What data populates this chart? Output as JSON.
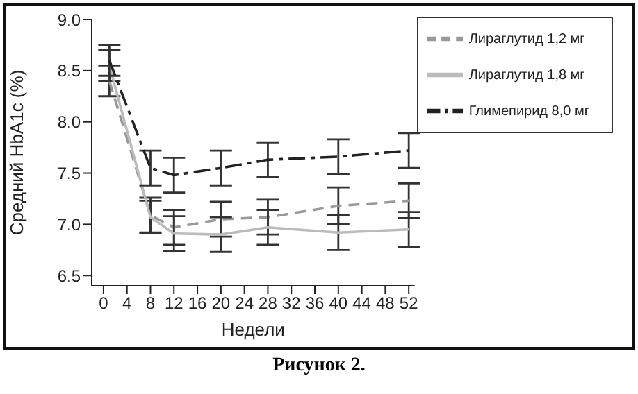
{
  "chart_data": {
    "type": "line",
    "xlabel": "Недели",
    "ylabel": "Средний  HbA1c (%)",
    "annotations": [
      "Рисунок 2."
    ],
    "x": [
      1,
      8,
      12,
      20,
      28,
      40,
      52
    ],
    "xlim": [
      -2,
      53
    ],
    "xticks": [
      0,
      4,
      8,
      12,
      16,
      20,
      24,
      28,
      32,
      36,
      40,
      44,
      48,
      52
    ],
    "ylim": [
      6.4,
      9.0
    ],
    "yticks": [
      {
        "value": 6.5,
        "label": "6.5"
      },
      {
        "value": 7,
        "label": "7.0"
      },
      {
        "value": 7.5,
        "label": "7.5"
      },
      {
        "value": 8,
        "label": "8.0"
      },
      {
        "value": 8.5,
        "label": "8.5"
      },
      {
        "value": 9,
        "label": "9.0"
      }
    ],
    "grid": false,
    "legend": "top right",
    "marker": "none",
    "series": [
      {
        "name": "Лираглутид 1,2 мг",
        "color": "#999999",
        "line_style": "dashed",
        "values": [
          8.4,
          7.09,
          6.97,
          7.05,
          7.07,
          7.18,
          7.23
        ],
        "errors": [
          0.15,
          0.17,
          0.17,
          0.17,
          0.17,
          0.18,
          0.17
        ]
      },
      {
        "name": "Лираглутид 1,8 мг",
        "color": "#bbbbbb",
        "line_style": "solid",
        "values": [
          8.55,
          7.07,
          6.91,
          6.9,
          6.97,
          6.92,
          6.95
        ],
        "errors": [
          0.15,
          0.16,
          0.17,
          0.17,
          0.17,
          0.17,
          0.17
        ]
      },
      {
        "name": "Глимепирид 8,0 мг",
        "color": "#222222",
        "line_style": "dashdot",
        "values": [
          8.6,
          7.55,
          7.48,
          7.55,
          7.63,
          7.66,
          7.72
        ],
        "errors": [
          0.15,
          0.17,
          0.17,
          0.17,
          0.17,
          0.17,
          0.17
        ]
      }
    ]
  }
}
